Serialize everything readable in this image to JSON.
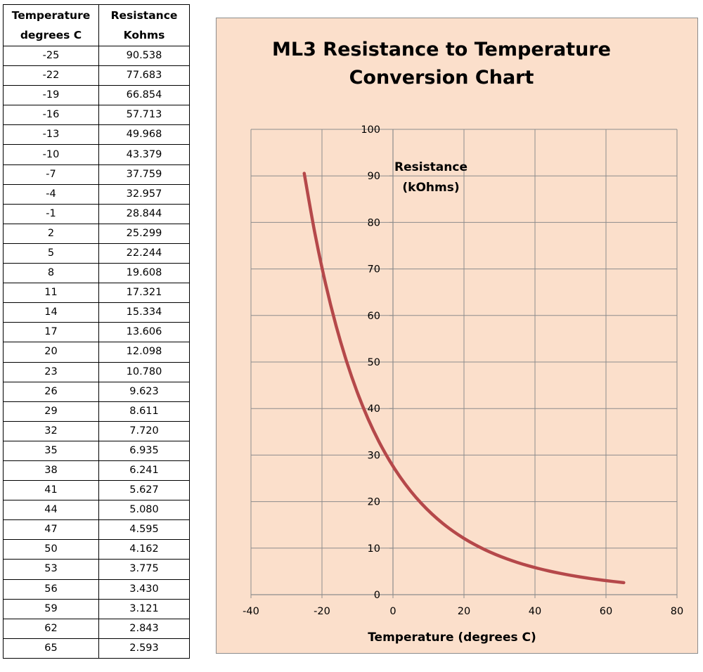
{
  "table": {
    "headers": [
      "Temperature degrees C",
      "Resistance Kohms"
    ],
    "header_lines": [
      [
        "Temperature",
        "degrees C"
      ],
      [
        "Resistance",
        "Kohms"
      ]
    ],
    "rows": [
      [
        "-25",
        "90.538"
      ],
      [
        "-22",
        "77.683"
      ],
      [
        "-19",
        "66.854"
      ],
      [
        "-16",
        "57.713"
      ],
      [
        "-13",
        "49.968"
      ],
      [
        "-10",
        "43.379"
      ],
      [
        "-7",
        "37.759"
      ],
      [
        "-4",
        "32.957"
      ],
      [
        "-1",
        "28.844"
      ],
      [
        "2",
        "25.299"
      ],
      [
        "5",
        "22.244"
      ],
      [
        "8",
        "19.608"
      ],
      [
        "11",
        "17.321"
      ],
      [
        "14",
        "15.334"
      ],
      [
        "17",
        "13.606"
      ],
      [
        "20",
        "12.098"
      ],
      [
        "23",
        "10.780"
      ],
      [
        "26",
        "9.623"
      ],
      [
        "29",
        "8.611"
      ],
      [
        "32",
        "7.720"
      ],
      [
        "35",
        "6.935"
      ],
      [
        "38",
        "6.241"
      ],
      [
        "41",
        "5.627"
      ],
      [
        "44",
        "5.080"
      ],
      [
        "47",
        "4.595"
      ],
      [
        "50",
        "4.162"
      ],
      [
        "53",
        "3.775"
      ],
      [
        "56",
        "3.430"
      ],
      [
        "59",
        "3.121"
      ],
      [
        "62",
        "2.843"
      ],
      [
        "65",
        "2.593"
      ]
    ]
  },
  "colors": {
    "panel_bg": "#fbdfcb",
    "series": "#b5484a",
    "grid": "#8c8c8c"
  },
  "chart_data": {
    "type": "scatter",
    "title": "ML3 Resistance to Temperature Conversion Chart",
    "title_lines": [
      "ML3 Resistance to Temperature",
      "Conversion Chart"
    ],
    "xlabel": "Temperature (degrees C)",
    "ylabel_lines": [
      "Resistance",
      "(kOhms)"
    ],
    "xlim": [
      -40,
      80
    ],
    "ylim": [
      0,
      100
    ],
    "xticks": [
      -40,
      -20,
      0,
      20,
      40,
      60,
      80
    ],
    "yticks": [
      0,
      10,
      20,
      30,
      40,
      50,
      60,
      70,
      80,
      90,
      100
    ],
    "grid": true,
    "series": [
      {
        "name": "Resistance (kOhms)",
        "x": [
          -25,
          -22,
          -19,
          -16,
          -13,
          -10,
          -7,
          -4,
          -1,
          2,
          5,
          8,
          11,
          14,
          17,
          20,
          23,
          26,
          29,
          32,
          35,
          38,
          41,
          44,
          47,
          50,
          53,
          56,
          59,
          62,
          65
        ],
        "y": [
          90.538,
          77.683,
          66.854,
          57.713,
          49.968,
          43.379,
          37.759,
          32.957,
          28.844,
          25.299,
          22.244,
          19.608,
          17.321,
          15.334,
          13.606,
          12.098,
          10.78,
          9.623,
          8.611,
          7.72,
          6.935,
          6.241,
          5.627,
          5.08,
          4.595,
          4.162,
          3.775,
          3.43,
          3.121,
          2.843,
          2.593
        ]
      }
    ]
  }
}
